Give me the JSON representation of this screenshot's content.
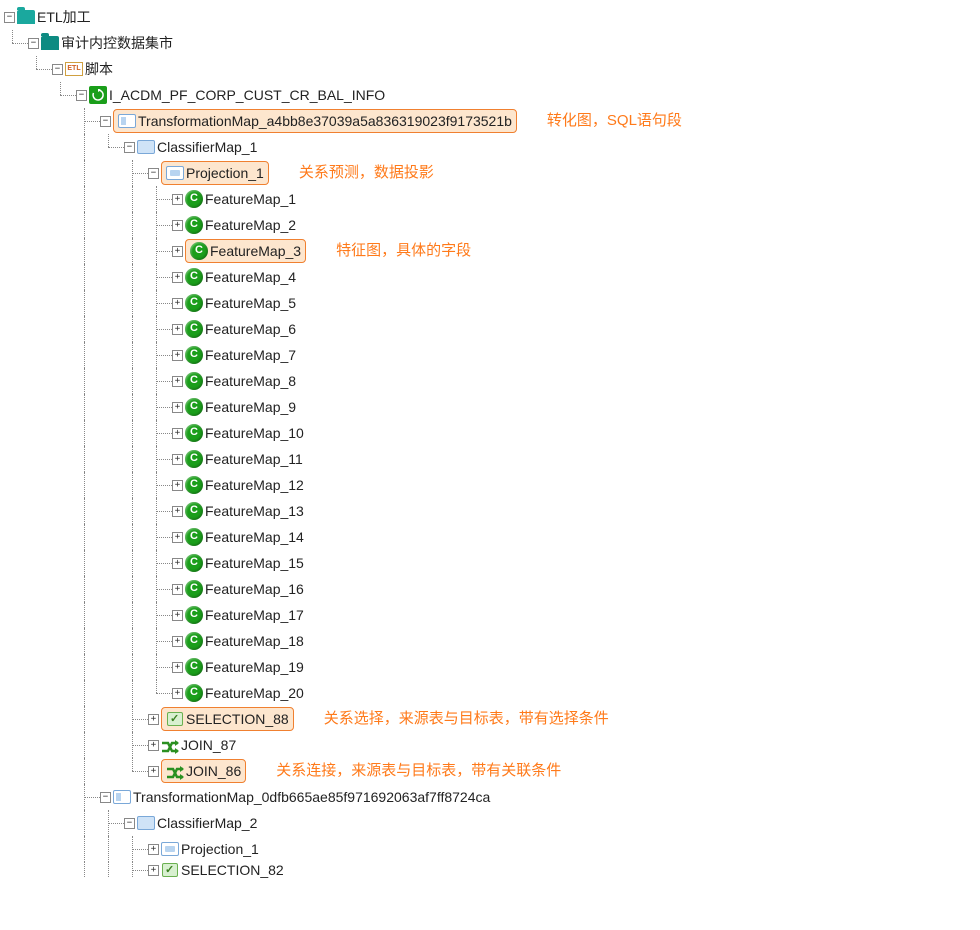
{
  "colors": {
    "highlight_bg": "#fde6ce",
    "highlight_border": "#f08030",
    "annotation_text": "#ff7a1a",
    "tree_line": "#888888",
    "icon_green": "#1a9e1a",
    "icon_teal": "#1aa89e",
    "icon_blue_border": "#7aa8d8",
    "text": "#222222"
  },
  "tree": {
    "root": {
      "label": "ETL加工",
      "icon": "folder-teal",
      "toggle": "minus"
    },
    "l1": {
      "label": "审计内控数据集市",
      "icon": "folder-teal-dark",
      "toggle": "minus"
    },
    "l2": {
      "label": "脚本",
      "icon": "etl",
      "toggle": "minus",
      "icon_text": "ETL"
    },
    "l3": {
      "label": "I_ACDM_PF_CORP_CUST_CR_BAL_INFO",
      "icon": "refresh",
      "toggle": "minus"
    },
    "tmap1": {
      "label": "TransformationMap_a4bb8e37039a5a836319023f9173521b",
      "icon": "map",
      "toggle": "minus",
      "highlight": true
    },
    "tmap1_annot": "转化图，SQL语句段",
    "cmap1": {
      "label": "ClassifierMap_1",
      "icon": "map-lg",
      "toggle": "minus"
    },
    "proj1": {
      "label": "Projection_1",
      "icon": "proj",
      "toggle": "minus",
      "highlight": true
    },
    "proj1_annot": "关系预测，数据投影",
    "features": [
      {
        "label": "FeatureMap_1",
        "toggle": "plus"
      },
      {
        "label": "FeatureMap_2",
        "toggle": "plus"
      },
      {
        "label": "FeatureMap_3",
        "toggle": "plus",
        "highlight": true,
        "annot": "特征图，具体的字段"
      },
      {
        "label": "FeatureMap_4",
        "toggle": "plus"
      },
      {
        "label": "FeatureMap_5",
        "toggle": "plus"
      },
      {
        "label": "FeatureMap_6",
        "toggle": "plus"
      },
      {
        "label": "FeatureMap_7",
        "toggle": "plus"
      },
      {
        "label": "FeatureMap_8",
        "toggle": "plus"
      },
      {
        "label": "FeatureMap_9",
        "toggle": "plus"
      },
      {
        "label": "FeatureMap_10",
        "toggle": "plus"
      },
      {
        "label": "FeatureMap_11",
        "toggle": "plus"
      },
      {
        "label": "FeatureMap_12",
        "toggle": "plus"
      },
      {
        "label": "FeatureMap_13",
        "toggle": "plus"
      },
      {
        "label": "FeatureMap_14",
        "toggle": "plus"
      },
      {
        "label": "FeatureMap_15",
        "toggle": "plus"
      },
      {
        "label": "FeatureMap_16",
        "toggle": "plus"
      },
      {
        "label": "FeatureMap_17",
        "toggle": "plus"
      },
      {
        "label": "FeatureMap_18",
        "toggle": "plus"
      },
      {
        "label": "FeatureMap_19",
        "toggle": "plus"
      },
      {
        "label": "FeatureMap_20",
        "toggle": "plus",
        "last": true
      }
    ],
    "sel88": {
      "label": "SELECTION_88",
      "icon": "sel",
      "toggle": "plus",
      "highlight": true
    },
    "sel88_annot": "关系选择，来源表与目标表，带有选择条件",
    "join87": {
      "label": "JOIN_87",
      "icon": "join",
      "toggle": "plus"
    },
    "join86": {
      "label": "JOIN_86",
      "icon": "join",
      "toggle": "plus",
      "highlight": true
    },
    "join86_annot": "关系连接，来源表与目标表，带有关联条件",
    "tmap2": {
      "label": "TransformationMap_0dfb665ae85f971692063af7ff8724ca",
      "icon": "map",
      "toggle": "minus"
    },
    "cmap2": {
      "label": "ClassifierMap_2",
      "icon": "map-lg",
      "toggle": "minus"
    },
    "proj2": {
      "label": "Projection_1",
      "icon": "proj",
      "toggle": "plus"
    },
    "sel82": {
      "label": "SELECTION_82",
      "icon": "sel",
      "toggle": "plus",
      "partial": true
    }
  }
}
